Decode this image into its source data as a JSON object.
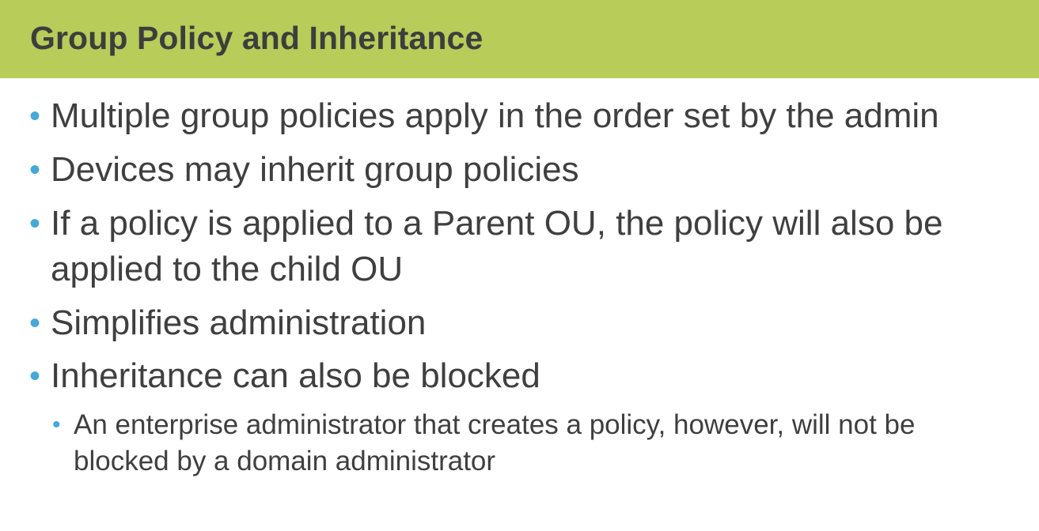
{
  "slide": {
    "title": "Group Policy and Inheritance",
    "bullet_symbol": "•",
    "colors": {
      "title_bar": "#b7cc59",
      "title_text": "#3d3d3d",
      "body_text": "#3f3f3f",
      "bullet": "#45a8d8",
      "background": "#ffffff"
    },
    "bullets": [
      {
        "text": "Multiple group policies apply in the order set by the admin"
      },
      {
        "text": "Devices may inherit group policies"
      },
      {
        "text": "If a policy is applied to a Parent OU, the policy will also be\napplied to the child OU"
      },
      {
        "text": "Simplifies administration"
      },
      {
        "text": "Inheritance can also be blocked"
      }
    ],
    "sub_bullets": [
      {
        "text": "An enterprise administrator that creates a policy, however, will not be\nblocked by a domain administrator"
      }
    ]
  }
}
